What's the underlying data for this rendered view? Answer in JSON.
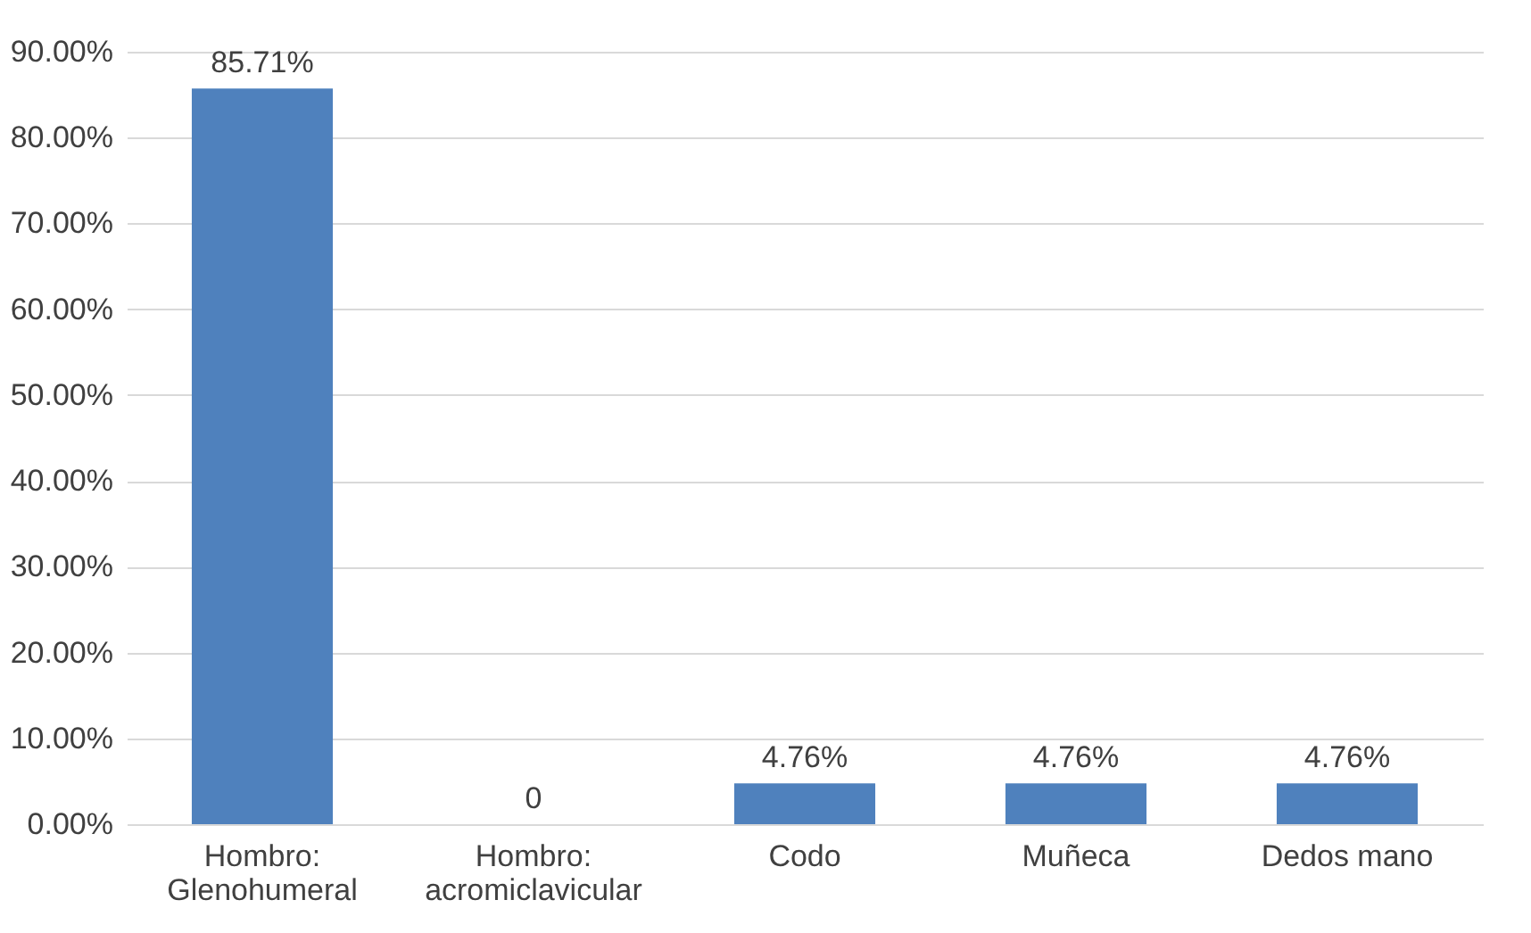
{
  "chart_data": {
    "type": "bar",
    "categories": [
      "Hombro: Glenohumeral",
      "Hombro: acromiclavicular",
      "Codo",
      "Muñeca",
      "Dedos mano"
    ],
    "values": [
      85.71,
      0,
      4.76,
      4.76,
      4.76
    ],
    "value_labels": [
      "85.71%",
      "0",
      "4.76%",
      "4.76%",
      "4.76%"
    ],
    "color": "#4f81bd",
    "ylim": [
      0,
      90
    ],
    "yticks": [
      {
        "value": 0,
        "label": "0.00%"
      },
      {
        "value": 10,
        "label": "10.00%"
      },
      {
        "value": 20,
        "label": "20.00%"
      },
      {
        "value": 30,
        "label": "30.00%"
      },
      {
        "value": 40,
        "label": "40.00%"
      },
      {
        "value": 50,
        "label": "50.00%"
      },
      {
        "value": 60,
        "label": "60.00%"
      },
      {
        "value": 70,
        "label": "70.00%"
      },
      {
        "value": 80,
        "label": "80.00%"
      },
      {
        "value": 90,
        "label": "90.00%"
      }
    ],
    "grid": "y"
  }
}
